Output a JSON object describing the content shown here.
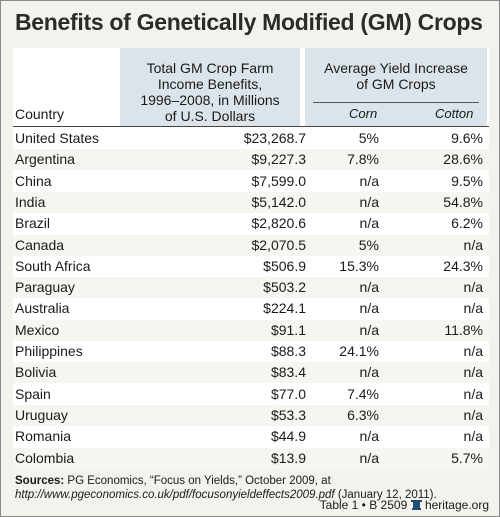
{
  "title": "Benefits of Genetically Modified (GM) Crops",
  "header": {
    "income_col": [
      "Total GM Crop Farm",
      "Income Benefits,",
      "1996–2008, in Millions",
      "of U.S. Dollars"
    ],
    "yield_col": [
      "Average Yield Increase",
      "of GM Crops"
    ],
    "country_label": "Country",
    "corn_label": "Corn",
    "cotton_label": "Cotton"
  },
  "chart_data": {
    "type": "table",
    "title": "Benefits of Genetically Modified (GM) Crops",
    "columns": [
      "Country",
      "Total GM Crop Farm Income Benefits, 1996–2008, in Millions of U.S. Dollars",
      "Corn",
      "Cotton"
    ],
    "rows": [
      [
        "United States",
        "$23,268.7",
        "5%",
        "9.6%"
      ],
      [
        "Argentina",
        "$9,227.3",
        "7.8%",
        "28.6%"
      ],
      [
        "China",
        "$7,599.0",
        "n/a",
        "9.5%"
      ],
      [
        "India",
        "$5,142.0",
        "n/a",
        "54.8%"
      ],
      [
        "Brazil",
        "$2,820.6",
        "n/a",
        "6.2%"
      ],
      [
        "Canada",
        "$2,070.5",
        "5%",
        "n/a"
      ],
      [
        "South Africa",
        "$506.9",
        "15.3%",
        "24.3%"
      ],
      [
        "Paraguay",
        "$503.2",
        "n/a",
        "n/a"
      ],
      [
        "Australia",
        "$224.1",
        "n/a",
        "n/a"
      ],
      [
        "Mexico",
        "$91.1",
        "n/a",
        "11.8%"
      ],
      [
        "Philippines",
        "$88.3",
        "24.1%",
        "n/a"
      ],
      [
        "Bolivia",
        "$83.4",
        "n/a",
        "n/a"
      ],
      [
        "Spain",
        "$77.0",
        "7.4%",
        "n/a"
      ],
      [
        "Uruguay",
        "$53.3",
        "6.3%",
        "n/a"
      ],
      [
        "Romania",
        "$44.9",
        "n/a",
        "n/a"
      ],
      [
        "Colombia",
        "$13.9",
        "n/a",
        "5.7%"
      ]
    ]
  },
  "sources": {
    "label": "Sources:",
    "text": "PG Economics, “Focus on Yields,” October 2009, at ",
    "url": "http://www.pgeconomics.co.uk/pdf/focusonyieldeffects2009.pdf",
    "date": " (January 12, 2011)."
  },
  "footer": {
    "table_ref": "Table 1 • B 2509",
    "site": "heritage.org"
  },
  "colors": {
    "header_shade": "#dbe4ea",
    "background": "#f4f2ec",
    "logo": "#1f4e79"
  }
}
